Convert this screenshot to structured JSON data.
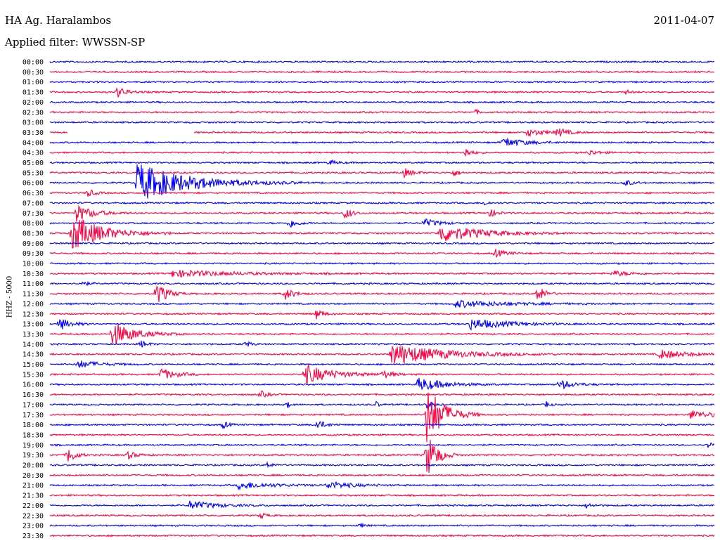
{
  "header": {
    "station": "HA Ag. Haralambos",
    "date": "2011-04-07",
    "filter_label": "Applied filter: WWSSN-SP"
  },
  "chart_data": {
    "type": "line",
    "ylabel": "HHZ - 5000",
    "grid": false,
    "colors": {
      "even_row": "#0000ff",
      "odd_row": "#ff0040"
    },
    "x": "time within 30-minute segment (minutes)",
    "xlim": [
      0,
      30
    ],
    "rows": [
      {
        "label": "00:00",
        "events": []
      },
      {
        "label": "00:30",
        "events": []
      },
      {
        "label": "01:00",
        "events": []
      },
      {
        "label": "01:30",
        "events": [
          {
            "t": 3,
            "amp": 8,
            "dur": 0.6
          },
          {
            "t": 26,
            "amp": 3,
            "dur": 0.3
          }
        ]
      },
      {
        "label": "02:00",
        "events": []
      },
      {
        "label": "02:30",
        "events": [
          {
            "t": 19.2,
            "amp": 4,
            "dur": 0.2
          }
        ]
      },
      {
        "label": "03:00",
        "events": []
      },
      {
        "label": "03:30",
        "events": [
          {
            "t": 21.5,
            "amp": 5,
            "dur": 1.2
          },
          {
            "t": 22.9,
            "amp": 7,
            "dur": 0.5
          }
        ],
        "gap": [
          0.8,
          6.5
        ]
      },
      {
        "label": "04:00",
        "events": [
          {
            "t": 20.4,
            "amp": 7,
            "dur": 1.3
          }
        ]
      },
      {
        "label": "04:30",
        "events": [
          {
            "t": 18.7,
            "amp": 8,
            "dur": 0.4
          },
          {
            "t": 24.3,
            "amp": 4,
            "dur": 0.6
          }
        ]
      },
      {
        "label": "05:00",
        "events": [
          {
            "t": 12.6,
            "amp": 4,
            "dur": 0.4
          }
        ]
      },
      {
        "label": "05:30",
        "events": [
          {
            "t": 16,
            "amp": 6,
            "dur": 0.5
          },
          {
            "t": 18.2,
            "amp": 6,
            "dur": 0.3
          }
        ]
      },
      {
        "label": "06:00",
        "events": [
          {
            "t": 3.9,
            "amp": 28,
            "dur": 3.0
          },
          {
            "t": 25.9,
            "amp": 6,
            "dur": 0.4
          }
        ]
      },
      {
        "label": "06:30",
        "events": [
          {
            "t": 1.7,
            "amp": 6,
            "dur": 0.4
          }
        ]
      },
      {
        "label": "07:00",
        "events": [
          {
            "t": 19.6,
            "amp": 4,
            "dur": 0.2
          }
        ]
      },
      {
        "label": "07:30",
        "events": [
          {
            "t": 1.2,
            "amp": 12,
            "dur": 1.0
          },
          {
            "t": 13.3,
            "amp": 9,
            "dur": 0.4
          },
          {
            "t": 19.8,
            "amp": 7,
            "dur": 0.4
          }
        ]
      },
      {
        "label": "08:00",
        "events": [
          {
            "t": 10.8,
            "amp": 7,
            "dur": 0.5
          },
          {
            "t": 16.9,
            "amp": 6,
            "dur": 0.8
          }
        ]
      },
      {
        "label": "08:30",
        "events": [
          {
            "t": 1.0,
            "amp": 26,
            "dur": 1.8
          },
          {
            "t": 17.6,
            "amp": 13,
            "dur": 2.4
          }
        ]
      },
      {
        "label": "09:00",
        "events": []
      },
      {
        "label": "09:30",
        "events": [
          {
            "t": 20.1,
            "amp": 6,
            "dur": 0.6
          }
        ]
      },
      {
        "label": "10:00",
        "events": []
      },
      {
        "label": "10:30",
        "events": [
          {
            "t": 5.5,
            "amp": 5,
            "dur": 3.5
          },
          {
            "t": 25.4,
            "amp": 4,
            "dur": 1.0
          }
        ]
      },
      {
        "label": "11:00",
        "events": [
          {
            "t": 1.4,
            "amp": 5,
            "dur": 0.3
          }
        ]
      },
      {
        "label": "11:30",
        "events": [
          {
            "t": 4.8,
            "amp": 17,
            "dur": 0.6
          },
          {
            "t": 10.6,
            "amp": 9,
            "dur": 0.5
          },
          {
            "t": 22.0,
            "amp": 14,
            "dur": 0.4
          }
        ]
      },
      {
        "label": "12:00",
        "events": [
          {
            "t": 18.3,
            "amp": 5,
            "dur": 3.0
          }
        ]
      },
      {
        "label": "12:30",
        "events": [
          {
            "t": 12.0,
            "amp": 8,
            "dur": 0.4
          }
        ]
      },
      {
        "label": "13:00",
        "events": [
          {
            "t": 0.4,
            "amp": 10,
            "dur": 0.6
          },
          {
            "t": 18.9,
            "amp": 8,
            "dur": 2.2
          }
        ]
      },
      {
        "label": "13:30",
        "events": [
          {
            "t": 2.8,
            "amp": 18,
            "dur": 1.3
          }
        ]
      },
      {
        "label": "14:00",
        "events": [
          {
            "t": 4.1,
            "amp": 5,
            "dur": 0.4
          },
          {
            "t": 8.8,
            "amp": 6,
            "dur": 0.3
          }
        ]
      },
      {
        "label": "14:30",
        "events": [
          {
            "t": 15.4,
            "amp": 16,
            "dur": 3.0
          },
          {
            "t": 27.5,
            "amp": 7,
            "dur": 1.5
          }
        ]
      },
      {
        "label": "15:00",
        "events": [
          {
            "t": 1.2,
            "amp": 6,
            "dur": 1.2
          }
        ]
      },
      {
        "label": "15:30",
        "events": [
          {
            "t": 5.0,
            "amp": 9,
            "dur": 0.8
          },
          {
            "t": 11.5,
            "amp": 14,
            "dur": 1.6
          },
          {
            "t": 15.0,
            "amp": 6,
            "dur": 0.6
          }
        ]
      },
      {
        "label": "16:00",
        "events": [
          {
            "t": 16.6,
            "amp": 10,
            "dur": 1.5
          },
          {
            "t": 23.0,
            "amp": 7,
            "dur": 0.8
          }
        ]
      },
      {
        "label": "16:30",
        "events": [
          {
            "t": 9.5,
            "amp": 5,
            "dur": 0.4
          }
        ]
      },
      {
        "label": "17:00",
        "events": [
          {
            "t": 10.7,
            "amp": 5,
            "dur": 0.2
          },
          {
            "t": 14.7,
            "amp": 5,
            "dur": 0.2
          },
          {
            "t": 17.0,
            "amp": 8,
            "dur": 0.3
          },
          {
            "t": 22.4,
            "amp": 5,
            "dur": 0.2
          }
        ]
      },
      {
        "label": "17:30",
        "events": [
          {
            "t": 17.0,
            "amp": 45,
            "dur": 1.0
          },
          {
            "t": 28.9,
            "amp": 6,
            "dur": 1.3
          }
        ]
      },
      {
        "label": "18:00",
        "events": [
          {
            "t": 7.8,
            "amp": 6,
            "dur": 0.3
          },
          {
            "t": 12.0,
            "amp": 8,
            "dur": 0.5
          }
        ]
      },
      {
        "label": "18:30",
        "events": []
      },
      {
        "label": "19:00",
        "events": [
          {
            "t": 29.7,
            "amp": 5,
            "dur": 0.2
          }
        ]
      },
      {
        "label": "19:30",
        "events": [
          {
            "t": 0.8,
            "amp": 14,
            "dur": 0.4
          },
          {
            "t": 3.5,
            "amp": 6,
            "dur": 0.5
          },
          {
            "t": 17.0,
            "amp": 35,
            "dur": 0.6
          }
        ]
      },
      {
        "label": "20:00",
        "events": [
          {
            "t": 9.8,
            "amp": 4,
            "dur": 0.3
          }
        ]
      },
      {
        "label": "20:30",
        "events": []
      },
      {
        "label": "21:00",
        "events": [
          {
            "t": 8.5,
            "amp": 5,
            "dur": 2.0
          },
          {
            "t": 12.5,
            "amp": 5,
            "dur": 1.5
          }
        ]
      },
      {
        "label": "21:30",
        "events": []
      },
      {
        "label": "22:00",
        "events": [
          {
            "t": 6.3,
            "amp": 6,
            "dur": 1.6
          },
          {
            "t": 24.2,
            "amp": 4,
            "dur": 0.4
          }
        ]
      },
      {
        "label": "22:30",
        "events": [
          {
            "t": 9.5,
            "amp": 5,
            "dur": 0.3
          }
        ]
      },
      {
        "label": "23:00",
        "events": [
          {
            "t": 14.0,
            "amp": 3,
            "dur": 0.3
          }
        ]
      },
      {
        "label": "23:30",
        "events": []
      }
    ]
  }
}
